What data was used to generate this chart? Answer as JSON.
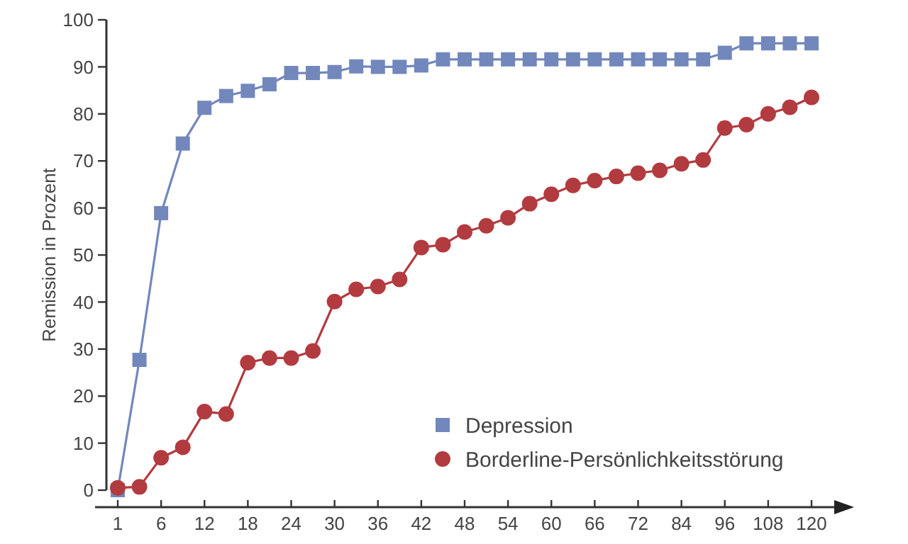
{
  "chart_data": {
    "type": "line",
    "ylabel": "Remission in Prozent",
    "categories": [
      "1",
      null,
      "6",
      null,
      "12",
      null,
      "18",
      null,
      "24",
      null,
      "30",
      null,
      "36",
      null,
      "42",
      null,
      "48",
      null,
      "54",
      null,
      "60",
      null,
      "66",
      null,
      "72",
      null,
      "84",
      null,
      "96",
      null,
      "108",
      null,
      "120"
    ],
    "series": [
      {
        "name": "Depression",
        "color": "#7287bb",
        "marker": "square",
        "values": [
          0,
          27.7,
          58.9,
          73.7,
          81.3,
          83.8,
          84.9,
          86.3,
          88.7,
          88.7,
          88.9,
          90.1,
          90,
          90,
          90.3,
          91.6,
          91.6,
          91.6,
          91.6,
          91.6,
          91.6,
          91.6,
          91.6,
          91.6,
          91.6,
          91.6,
          91.6,
          91.6,
          93,
          95,
          95,
          95,
          95
        ]
      },
      {
        "name": "Borderline-Persönlichkeitsstörung",
        "color": "#b23b40",
        "marker": "circle",
        "values": [
          0.5,
          0.7,
          6.9,
          9.1,
          16.7,
          16.2,
          27.1,
          28.1,
          28.1,
          29.6,
          40.1,
          42.7,
          43.3,
          44.8,
          51.6,
          52.2,
          54.9,
          56.2,
          57.9,
          60.9,
          62.9,
          64.8,
          65.8,
          66.7,
          67.4,
          68,
          69.4,
          70.2,
          77,
          77.7,
          80,
          81.4,
          83.5
        ]
      }
    ],
    "ylim": [
      0,
      100
    ],
    "yticks": [
      0,
      10,
      20,
      30,
      40,
      50,
      60,
      70,
      80,
      90,
      100
    ],
    "grid": false,
    "legend": "bottom right",
    "line_style": "solid"
  }
}
